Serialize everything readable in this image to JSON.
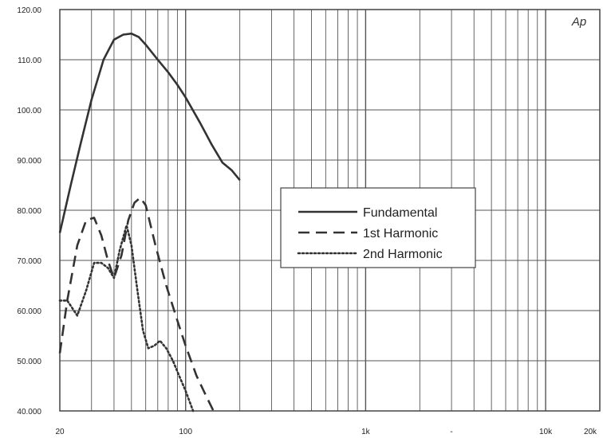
{
  "chart_data": {
    "type": "line",
    "title": "",
    "xlabel": "",
    "ylabel": "",
    "x_scale": "log",
    "xlim": [
      20,
      20000
    ],
    "ylim": [
      40,
      120
    ],
    "grid": true,
    "legend_position": "center-right",
    "watermark": "Ap",
    "x_ticks": [
      {
        "value": 20,
        "label": "20"
      },
      {
        "value": 100,
        "label": "100"
      },
      {
        "value": 1000,
        "label": "1k"
      },
      {
        "value": 3000,
        "label": "-"
      },
      {
        "value": 10000,
        "label": "10k"
      },
      {
        "value": 20000,
        "label": "20k"
      }
    ],
    "y_ticks": [
      {
        "value": 40,
        "label": "40.000"
      },
      {
        "value": 50,
        "label": "50.000"
      },
      {
        "value": 60,
        "label": "60.000"
      },
      {
        "value": 70,
        "label": "70.000"
      },
      {
        "value": 80,
        "label": "80.000"
      },
      {
        "value": 90,
        "label": "90.000"
      },
      {
        "value": 100,
        "label": "100.00"
      },
      {
        "value": 110,
        "label": "110.00"
      },
      {
        "value": 120,
        "label": "120.00"
      }
    ],
    "series": [
      {
        "name": "Fundamental",
        "color": "#333333",
        "style": "solid",
        "points": [
          [
            20,
            75.5
          ],
          [
            23,
            85
          ],
          [
            26,
            93
          ],
          [
            30,
            102
          ],
          [
            35,
            110
          ],
          [
            40,
            114
          ],
          [
            45,
            115
          ],
          [
            50,
            115.2
          ],
          [
            55,
            114.5
          ],
          [
            60,
            113
          ],
          [
            70,
            110
          ],
          [
            80,
            107.5
          ],
          [
            90,
            105
          ],
          [
            100,
            102.5
          ],
          [
            120,
            97.5
          ],
          [
            140,
            93
          ],
          [
            160,
            89.5
          ],
          [
            180,
            88
          ],
          [
            200,
            86
          ]
        ]
      },
      {
        "name": "1st Harmonic",
        "color": "#333333",
        "style": "dashed",
        "points": [
          [
            20,
            51.5
          ],
          [
            22,
            62
          ],
          [
            25,
            73
          ],
          [
            28,
            78
          ],
          [
            31,
            78.5
          ],
          [
            34,
            75
          ],
          [
            37,
            70
          ],
          [
            40,
            66.5
          ],
          [
            44,
            71
          ],
          [
            48,
            78
          ],
          [
            52,
            81.5
          ],
          [
            56,
            82.5
          ],
          [
            60,
            81
          ],
          [
            68,
            73
          ],
          [
            78,
            65
          ],
          [
            90,
            58
          ],
          [
            100,
            53
          ],
          [
            115,
            47
          ],
          [
            130,
            43
          ],
          [
            145,
            39.5
          ]
        ]
      },
      {
        "name": "2nd Harmonic",
        "color": "#333333",
        "style": "dotted",
        "points": [
          [
            20,
            62
          ],
          [
            22,
            62
          ],
          [
            25,
            59
          ],
          [
            28,
            64
          ],
          [
            31,
            69.5
          ],
          [
            34,
            69.5
          ],
          [
            37,
            68.5
          ],
          [
            40,
            66.5
          ],
          [
            43,
            72
          ],
          [
            47,
            77
          ],
          [
            50,
            73
          ],
          [
            54,
            64
          ],
          [
            58,
            56
          ],
          [
            62,
            52.5
          ],
          [
            67,
            53
          ],
          [
            72,
            54
          ],
          [
            78,
            52.5
          ],
          [
            85,
            50
          ],
          [
            92,
            47
          ],
          [
            100,
            44
          ],
          [
            110,
            40
          ]
        ]
      }
    ]
  }
}
